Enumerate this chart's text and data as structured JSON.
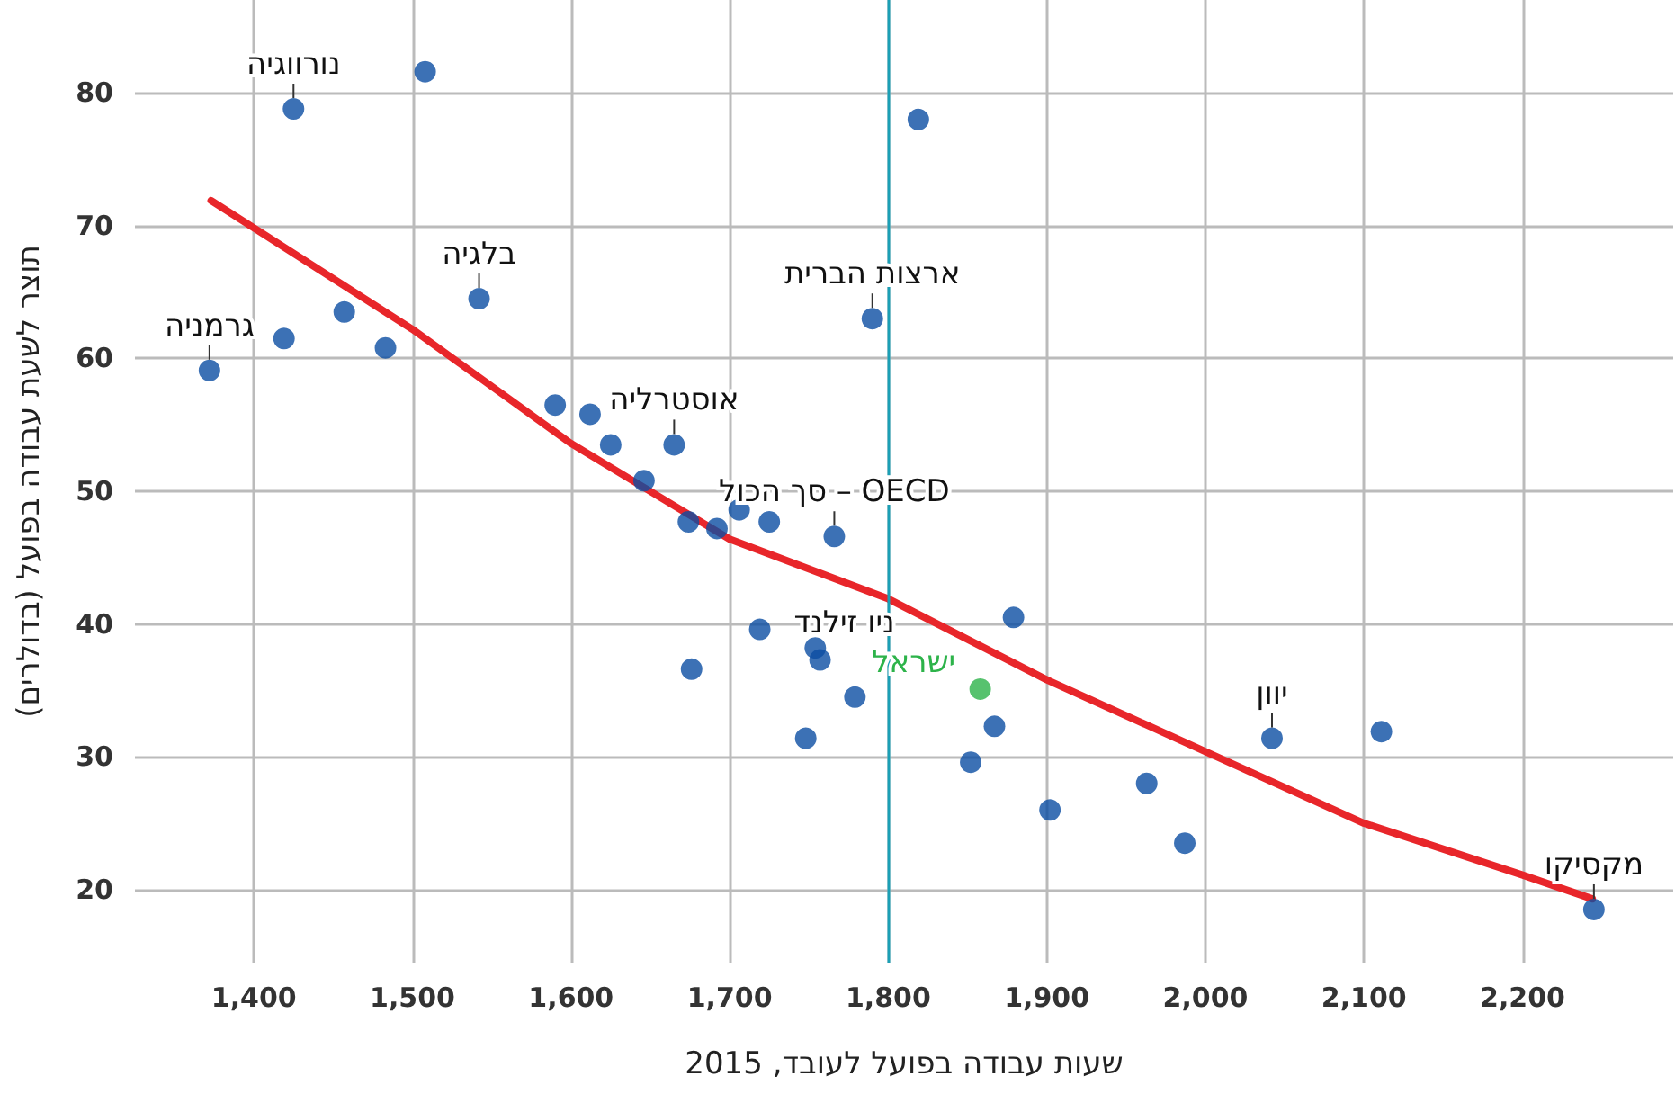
{
  "chart_data": {
    "type": "scatter",
    "xlabel": "שעות עבודה בפועל לעובד, 2015",
    "ylabel": "תוצר לשעת עבודה בפועל (בדולרים)",
    "xlim": [
      1325,
      2295
    ],
    "ylim": [
      14.5,
      87
    ],
    "xticks": [
      {
        "value": 1400,
        "label": "1,400"
      },
      {
        "value": 1500,
        "label": "1,500"
      },
      {
        "value": 1600,
        "label": "1,600"
      },
      {
        "value": 1700,
        "label": "1,700"
      },
      {
        "value": 1800,
        "label": "1,800"
      },
      {
        "value": 1900,
        "label": "1,900"
      },
      {
        "value": 2000,
        "label": "2,000"
      },
      {
        "value": 2100,
        "label": "2,100"
      },
      {
        "value": 2200,
        "label": "2,200"
      }
    ],
    "yticks": [
      20,
      30,
      40,
      50,
      60,
      70,
      80
    ],
    "grid": true,
    "marker": "circle",
    "series": [
      {
        "color": "#0b4ea2",
        "x": [
          1372,
          1419,
          1457,
          1483,
          1425,
          1508,
          1542,
          1790,
          1819,
          1590,
          1612,
          1625,
          1665,
          1646,
          1674,
          1692,
          1706,
          1725,
          1766,
          1719,
          1676,
          1754,
          1757,
          1779,
          1748,
          1858,
          1867,
          1852,
          1879,
          1902,
          1963,
          1987,
          2042,
          2111,
          2245
        ],
        "values": [
          59.1,
          61.5,
          63.5,
          60.8,
          78.8,
          81.6,
          64.5,
          63.0,
          78.0,
          56.5,
          55.8,
          53.5,
          53.5,
          50.8,
          47.7,
          47.2,
          48.6,
          47.7,
          46.6,
          39.6,
          36.6,
          38.2,
          37.3,
          34.5,
          31.4,
          35.1,
          32.3,
          29.6,
          40.5,
          26.0,
          28.0,
          23.5,
          31.4,
          31.9,
          18.5
        ],
        "colors": [
          "#0b4ea2",
          "#0b4ea2",
          "#0b4ea2",
          "#0b4ea2",
          "#0b4ea2",
          "#0b4ea2",
          "#0b4ea2",
          "#0b4ea2",
          "#0b4ea2",
          "#0b4ea2",
          "#0b4ea2",
          "#0b4ea2",
          "#0b4ea2",
          "#0b4ea2",
          "#0b4ea2",
          "#0b4ea2",
          "#0b4ea2",
          "#0b4ea2",
          "#0b4ea2",
          "#0b4ea2",
          "#0b4ea2",
          "#0b4ea2",
          "#0b4ea2",
          "#0b4ea2",
          "#0b4ea2",
          "#2db34a",
          "#0b4ea2",
          "#0b4ea2",
          "#0b4ea2",
          "#0b4ea2",
          "#0b4ea2",
          "#0b4ea2",
          "#0b4ea2",
          "#0b4ea2",
          "#0b4ea2"
        ]
      },
      {
        "type": "line",
        "color": "#e8262a",
        "marker": "none",
        "x": [
          1373,
          1500,
          1600,
          1700,
          1800,
          1900,
          2000,
          2100,
          2200,
          2244
        ],
        "values": [
          71.9,
          62.2,
          53.6,
          46.4,
          41.9,
          35.8,
          30.4,
          25.0,
          21.1,
          19.3
        ]
      }
    ],
    "ref_lines": [
      {
        "axis": "x",
        "value": 1800,
        "color": "#1b9fb5"
      }
    ],
    "annotations": [
      {
        "text": "גרמניה",
        "x": 1372,
        "y": 59.1
      },
      {
        "text": "נורווגיה",
        "x": 1425,
        "y": 78.8
      },
      {
        "text": "בלגיה",
        "x": 1542,
        "y": 64.5
      },
      {
        "text": "ארצות הברית",
        "x": 1790,
        "y": 63.0
      },
      {
        "text": "אוסטרליה",
        "x": 1665,
        "y": 53.5
      },
      {
        "text": "OECD – סך הכול",
        "x": 1766,
        "y": 46.6
      },
      {
        "text": "ניו זילנד",
        "x": 1719,
        "y": 39.6
      },
      {
        "text": "ישראל",
        "x": 1858,
        "y": 35.1
      },
      {
        "text": "יוון",
        "x": 2042,
        "y": 31.4
      },
      {
        "text": "מקסיקו",
        "x": 2245,
        "y": 18.5
      }
    ]
  }
}
